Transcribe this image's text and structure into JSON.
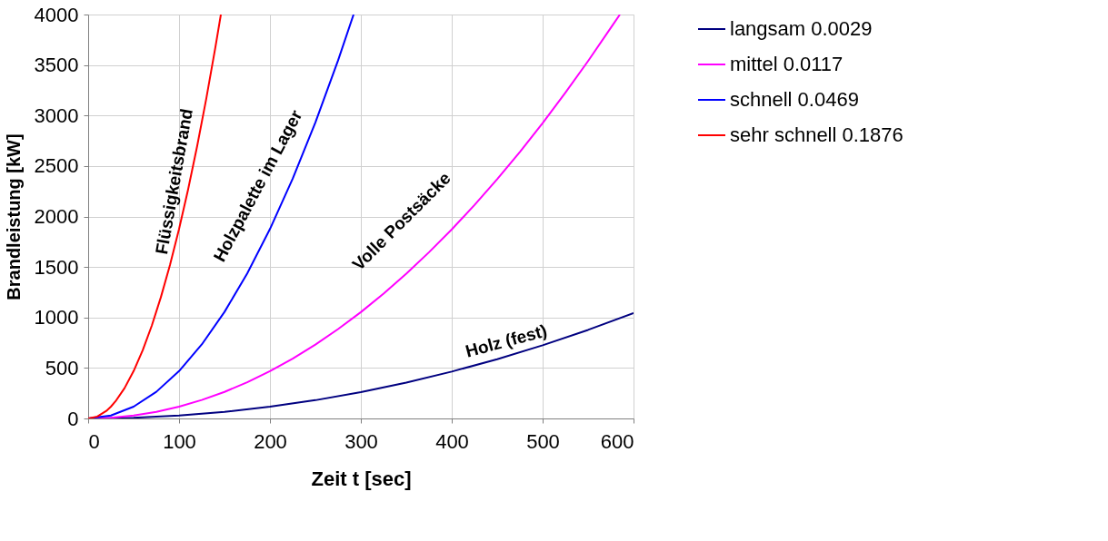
{
  "chart_data": {
    "type": "line",
    "xlabel": "Zeit t [sec]",
    "ylabel": "Brandleistung [kW]",
    "xlim": [
      0,
      600
    ],
    "ylim": [
      0,
      4000
    ],
    "xticks": [
      0,
      100,
      200,
      300,
      400,
      500,
      600
    ],
    "yticks": [
      0,
      500,
      1000,
      1500,
      2000,
      2500,
      3000,
      3500,
      4000
    ],
    "grid": true,
    "legend": "right",
    "marker": "none",
    "line_style": "solid",
    "series": [
      {
        "name": "langsam 0.0029",
        "color": "#000080",
        "x": [
          0,
          50,
          100,
          150,
          200,
          250,
          300,
          350,
          400,
          450,
          500,
          550,
          600
        ],
        "values": [
          0,
          7,
          29,
          65,
          116,
          181,
          261,
          355,
          464,
          587,
          725,
          877,
          1044
        ]
      },
      {
        "name": "mittel 0.0117",
        "color": "#ff00ff",
        "x": [
          0,
          25,
          50,
          75,
          100,
          125,
          150,
          175,
          200,
          225,
          250,
          275,
          300,
          325,
          350,
          375,
          400,
          425,
          450,
          475,
          500,
          525,
          550,
          575,
          585
        ],
        "values": [
          0,
          7,
          29,
          66,
          117,
          183,
          263,
          358,
          468,
          592,
          731,
          885,
          1053,
          1236,
          1433,
          1646,
          1872,
          2113,
          2369,
          2640,
          2925,
          3225,
          3539,
          3868,
          4000
        ]
      },
      {
        "name": "schnell 0.0469",
        "color": "#0000ff",
        "x": [
          0,
          25,
          50,
          75,
          100,
          125,
          150,
          175,
          200,
          225,
          250,
          275,
          292
        ],
        "values": [
          0,
          29,
          117,
          264,
          469,
          733,
          1055,
          1436,
          1876,
          2374,
          2931,
          3547,
          4000
        ]
      },
      {
        "name": "sehr schnell 0.1876",
        "color": "#ff0000",
        "x": [
          0,
          10,
          20,
          25,
          30,
          40,
          50,
          60,
          70,
          80,
          90,
          100,
          110,
          120,
          130,
          140,
          146
        ],
        "values": [
          0,
          19,
          75,
          117,
          169,
          300,
          469,
          675,
          919,
          1201,
          1520,
          1876,
          2270,
          2701,
          3170,
          3677,
          4000
        ]
      }
    ],
    "annotations": [
      "Flüssigkeitsbrand",
      "Holzpalette im Lager",
      "Volle Postsäcke",
      "Holz (fest)"
    ]
  }
}
